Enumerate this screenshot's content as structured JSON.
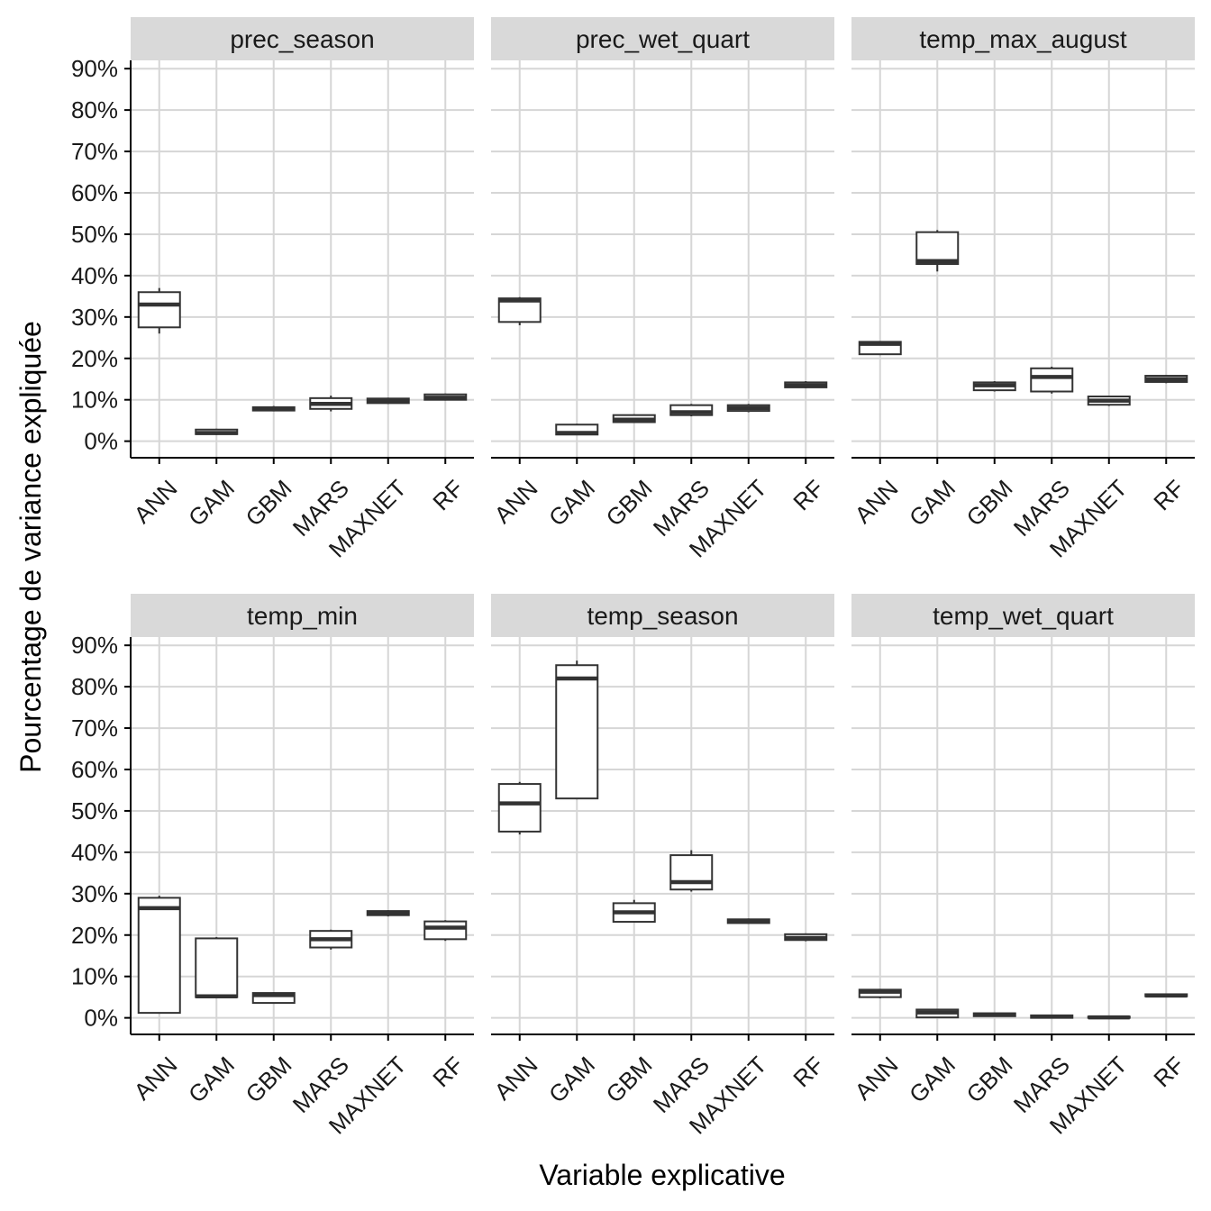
{
  "chart_data": {
    "type": "boxplot",
    "xlabel": "Variable explicative",
    "ylabel": "Pourcentage de variance expliquée",
    "ylim": [
      -4,
      92
    ],
    "y_ticks": [
      0,
      10,
      20,
      30,
      40,
      50,
      60,
      70,
      80,
      90
    ],
    "y_tick_labels": [
      "0%",
      "10%",
      "20%",
      "30%",
      "40%",
      "50%",
      "60%",
      "70%",
      "80%",
      "90%"
    ],
    "categories": [
      "ANN",
      "GAM",
      "GBM",
      "MARS",
      "MAXNET",
      "RF"
    ],
    "facet_layout": "2 rows x 3 columns",
    "colors": {
      "strip": "#d9d9d9",
      "grid": "#d6d6d6",
      "box_line": "#333333",
      "axis": "#000000"
    },
    "panels": [
      {
        "title": "prec_season",
        "boxes": [
          {
            "category": "ANN",
            "min": 26,
            "q1": 27.5,
            "median": 33,
            "q3": 36,
            "max": 37
          },
          {
            "category": "GAM",
            "min": 1.5,
            "q1": 1.7,
            "median": 2,
            "q3": 2.8,
            "max": 3
          },
          {
            "category": "GBM",
            "min": 7.2,
            "q1": 7.4,
            "median": 7.8,
            "q3": 8.2,
            "max": 8.5
          },
          {
            "category": "MARS",
            "min": 7.2,
            "q1": 7.8,
            "median": 9,
            "q3": 10.4,
            "max": 11
          },
          {
            "category": "MAXNET",
            "min": 9,
            "q1": 9.2,
            "median": 9.8,
            "q3": 10.3,
            "max": 10.5
          },
          {
            "category": "RF",
            "min": 9.8,
            "q1": 10,
            "median": 10.5,
            "q3": 11.3,
            "max": 11.5
          }
        ]
      },
      {
        "title": "prec_wet_quart",
        "boxes": [
          {
            "category": "ANN",
            "min": 28,
            "q1": 28.8,
            "median": 34,
            "q3": 34.5,
            "max": 34.8
          },
          {
            "category": "GAM",
            "min": 1.5,
            "q1": 1.6,
            "median": 2,
            "q3": 4,
            "max": 4.2
          },
          {
            "category": "GBM",
            "min": 4.4,
            "q1": 4.6,
            "median": 5.2,
            "q3": 6.3,
            "max": 6.5
          },
          {
            "category": "MARS",
            "min": 6,
            "q1": 6.3,
            "median": 7,
            "q3": 8.7,
            "max": 9
          },
          {
            "category": "MAXNET",
            "min": 7,
            "q1": 7.3,
            "median": 8,
            "q3": 8.7,
            "max": 9
          },
          {
            "category": "RF",
            "min": 12.8,
            "q1": 13,
            "median": 13.5,
            "q3": 14.2,
            "max": 14.5
          }
        ]
      },
      {
        "title": "temp_max_august",
        "boxes": [
          {
            "category": "ANN",
            "min": 20.8,
            "q1": 21,
            "median": 23.5,
            "q3": 24,
            "max": 24.2
          },
          {
            "category": "GAM",
            "min": 41,
            "q1": 42.8,
            "median": 43.5,
            "q3": 50.5,
            "max": 51
          },
          {
            "category": "GBM",
            "min": 12,
            "q1": 12.3,
            "median": 13.5,
            "q3": 14.2,
            "max": 14.5
          },
          {
            "category": "MARS",
            "min": 11.5,
            "q1": 12,
            "median": 15.5,
            "q3": 17.6,
            "max": 18
          },
          {
            "category": "MAXNET",
            "min": 8.5,
            "q1": 8.8,
            "median": 9.8,
            "q3": 10.8,
            "max": 11
          },
          {
            "category": "RF",
            "min": 14,
            "q1": 14.3,
            "median": 15,
            "q3": 15.8,
            "max": 16
          }
        ]
      },
      {
        "title": "temp_min",
        "boxes": [
          {
            "category": "ANN",
            "min": 1,
            "q1": 1.2,
            "median": 26.5,
            "q3": 29,
            "max": 29.5
          },
          {
            "category": "GAM",
            "min": 4.7,
            "q1": 5,
            "median": 5.2,
            "q3": 19.2,
            "max": 19.5
          },
          {
            "category": "GBM",
            "min": 3.4,
            "q1": 3.6,
            "median": 5.5,
            "q3": 6,
            "max": 6.2
          },
          {
            "category": "MARS",
            "min": 16.5,
            "q1": 17,
            "median": 19,
            "q3": 21,
            "max": 21.3
          },
          {
            "category": "MAXNET",
            "min": 24.5,
            "q1": 24.8,
            "median": 25.3,
            "q3": 25.8,
            "max": 26
          },
          {
            "category": "RF",
            "min": 18.6,
            "q1": 19,
            "median": 21.8,
            "q3": 23.3,
            "max": 23.6
          }
        ]
      },
      {
        "title": "temp_season",
        "boxes": [
          {
            "category": "ANN",
            "min": 44.3,
            "q1": 45,
            "median": 51.8,
            "q3": 56.5,
            "max": 57
          },
          {
            "category": "GAM",
            "min": 52.8,
            "q1": 53,
            "median": 82,
            "q3": 85.2,
            "max": 86.3
          },
          {
            "category": "GBM",
            "min": 23,
            "q1": 23.2,
            "median": 25.5,
            "q3": 27.7,
            "max": 28.5
          },
          {
            "category": "MARS",
            "min": 30.5,
            "q1": 31,
            "median": 32.8,
            "q3": 39.3,
            "max": 40.5
          },
          {
            "category": "MAXNET",
            "min": 22.7,
            "q1": 22.9,
            "median": 23.3,
            "q3": 23.8,
            "max": 24
          },
          {
            "category": "RF",
            "min": 18.5,
            "q1": 18.8,
            "median": 19.3,
            "q3": 20.2,
            "max": 20.4
          }
        ]
      },
      {
        "title": "temp_wet_quart",
        "boxes": [
          {
            "category": "ANN",
            "min": 4.7,
            "q1": 5,
            "median": 6.3,
            "q3": 6.8,
            "max": 7
          },
          {
            "category": "GAM",
            "min": 0,
            "q1": 0.1,
            "median": 1.3,
            "q3": 2,
            "max": 2.2
          },
          {
            "category": "GBM",
            "min": 0.3,
            "q1": 0.4,
            "median": 0.8,
            "q3": 1.1,
            "max": 1.2
          },
          {
            "category": "MARS",
            "min": 0,
            "q1": 0,
            "median": 0.3,
            "q3": 0.6,
            "max": 0.7
          },
          {
            "category": "MAXNET",
            "min": 0,
            "q1": 0,
            "median": 0.1,
            "q3": 0.3,
            "max": 0.3
          },
          {
            "category": "RF",
            "min": 5.1,
            "q1": 5.2,
            "median": 5.4,
            "q3": 5.7,
            "max": 5.8
          }
        ]
      }
    ]
  }
}
